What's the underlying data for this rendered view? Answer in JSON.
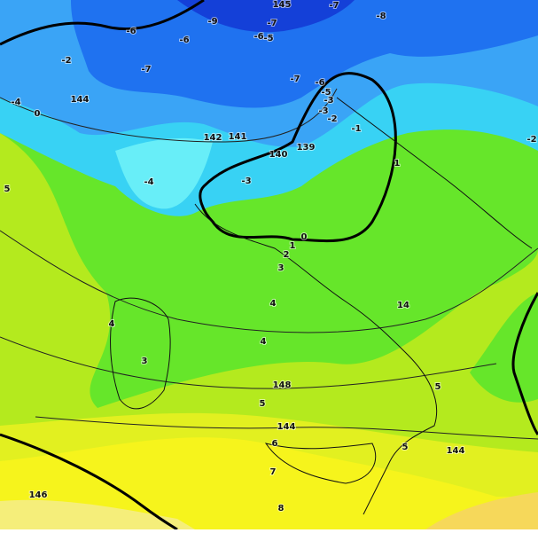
{
  "labels": [
    "-9",
    "145",
    "-7",
    "-8",
    "-6",
    "-6",
    "-7",
    "-6",
    "-5",
    "-2",
    "-7",
    "-4",
    "144",
    "0",
    "-7",
    "-6",
    "-5",
    "-3",
    "-3",
    "-2",
    "-1",
    "-2",
    "142",
    "141",
    "140",
    "139",
    "-4",
    "-3",
    "5",
    "1",
    "0",
    "1",
    "2",
    "3",
    "4",
    "14",
    "4",
    "4",
    "3",
    "148",
    "5",
    "5",
    "144",
    "6",
    "5",
    "144",
    "7",
    "146",
    "8"
  ]
}
